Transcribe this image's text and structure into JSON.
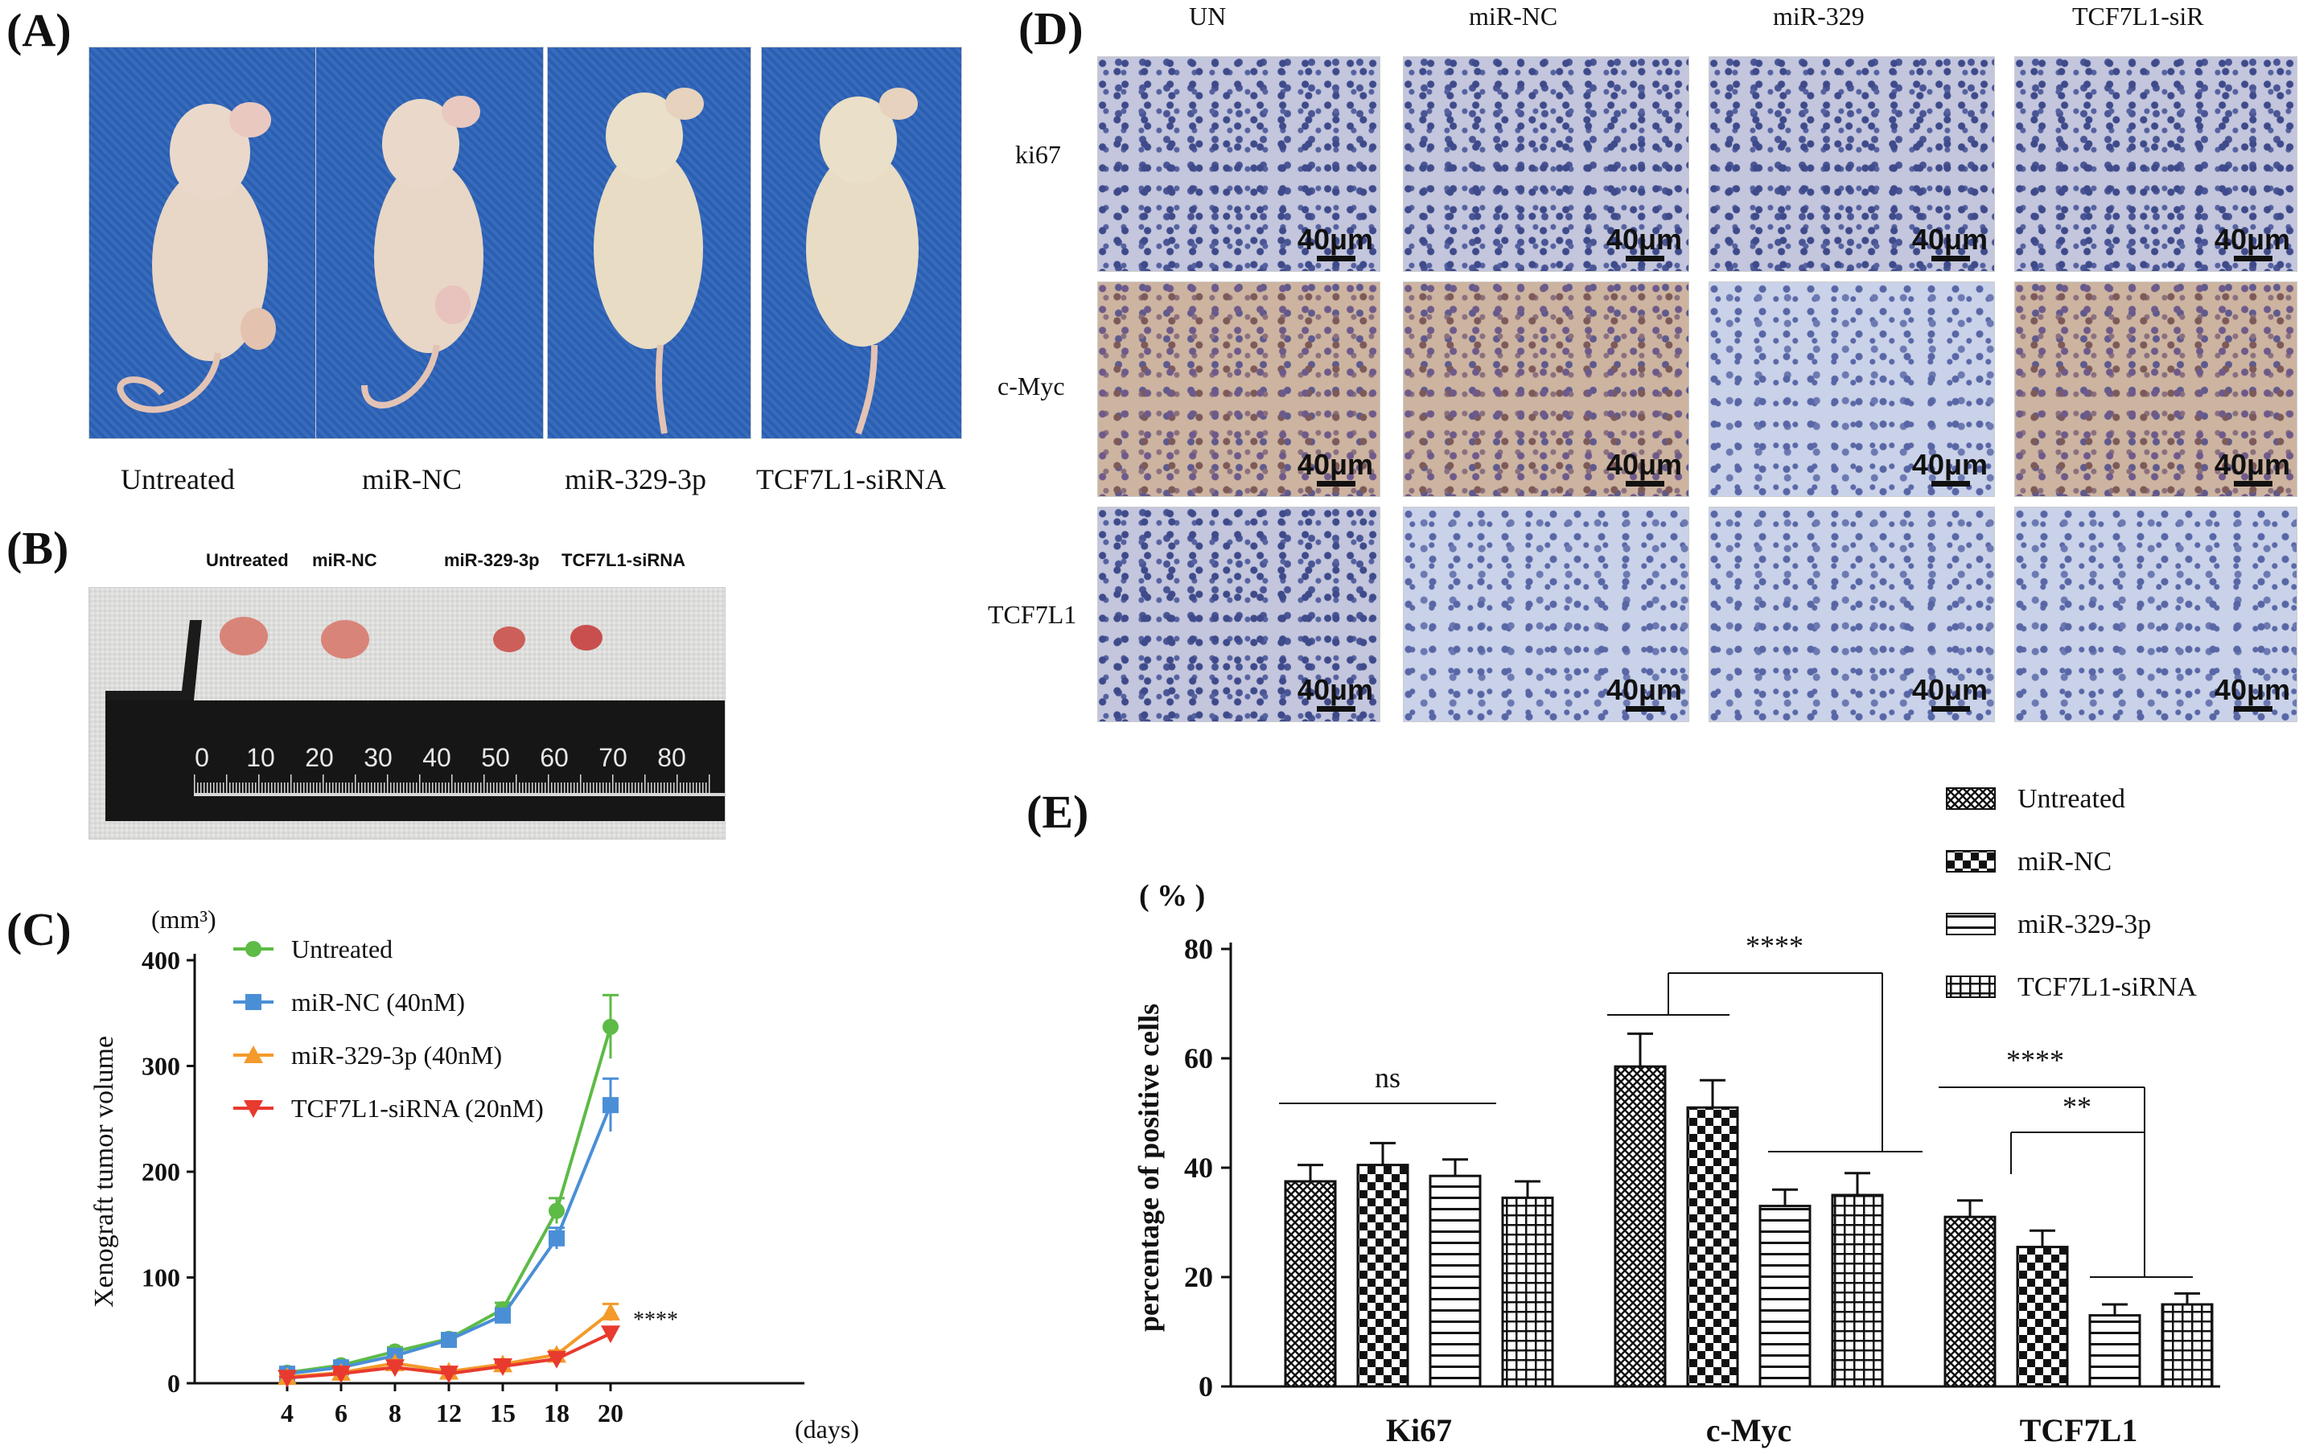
{
  "panels": {
    "A": {
      "label": "(A)",
      "mice": [
        {
          "caption": "Untreated"
        },
        {
          "caption": "miR-NC"
        },
        {
          "caption": "miR-329-3p"
        },
        {
          "caption": "TCF7L1-siRNA"
        }
      ]
    },
    "B": {
      "label": "(B)",
      "tumor_labels": [
        "Untreated",
        "miR-NC",
        "miR-329-3p",
        "TCF7L1-siRNA"
      ],
      "ruler_ticks": [
        "0",
        "10",
        "20",
        "30",
        "40",
        "50",
        "60",
        "70",
        "80"
      ]
    },
    "C": {
      "label": "(C)"
    },
    "D": {
      "label": "(D)",
      "columns": [
        "UN",
        "miR-NC",
        "miR-329",
        "TCF7L1-siR"
      ],
      "rows": [
        "ki67",
        "c-Myc",
        "TCF7L1"
      ],
      "scale_bar": "40μm"
    },
    "E": {
      "label": "(E)"
    }
  },
  "chart_data": [
    {
      "type": "line",
      "y_unit": "(mm³)",
      "ylabel": "Xenograft tumor volume",
      "x_unit": "(days)",
      "x": [
        4,
        6,
        8,
        12,
        15,
        18,
        20
      ],
      "ylim": [
        0,
        400
      ],
      "yticks": [
        0,
        100,
        200,
        300,
        400
      ],
      "series": [
        {
          "name": "Untreated",
          "color": "#5dbb46",
          "marker": "circle",
          "values": [
            10,
            17,
            30,
            42,
            70,
            163,
            337
          ],
          "errors": [
            2,
            3,
            4,
            4,
            6,
            12,
            30
          ]
        },
        {
          "name": "miR-NC (40nM)",
          "color": "#4a8fd6",
          "marker": "square",
          "values": [
            9,
            15,
            26,
            41,
            64,
            137,
            263
          ],
          "errors": [
            2,
            3,
            4,
            4,
            6,
            10,
            25
          ]
        },
        {
          "name": "miR-329-3p (40nM)",
          "color": "#f39a2a",
          "marker": "triangle-up",
          "values": [
            6,
            10,
            19,
            11,
            18,
            27,
            67
          ],
          "errors": [
            1,
            2,
            3,
            2,
            3,
            4,
            8
          ]
        },
        {
          "name": "TCF7L1-siRNA (20nM)",
          "color": "#e83a2e",
          "marker": "triangle-down",
          "values": [
            5,
            9,
            15,
            9,
            16,
            23,
            47
          ],
          "errors": [
            1,
            2,
            3,
            2,
            3,
            4,
            6
          ]
        }
      ],
      "annotation": "****"
    },
    {
      "type": "bar",
      "y_unit": "( % )",
      "ylabel": "percentage of positive cells",
      "categories": [
        "Ki67",
        "c-Myc",
        "TCF7L1"
      ],
      "ylim": [
        0,
        80
      ],
      "yticks": [
        0,
        20,
        40,
        60,
        80
      ],
      "series": [
        {
          "name": "Untreated",
          "pattern": "crosshatch",
          "values": [
            37.5,
            58.5,
            31
          ],
          "errors": [
            3,
            6,
            3
          ]
        },
        {
          "name": "miR-NC",
          "pattern": "checker",
          "values": [
            40.5,
            51,
            25.5
          ],
          "errors": [
            4,
            5,
            3
          ]
        },
        {
          "name": "miR-329-3p",
          "pattern": "horizontal",
          "values": [
            38.5,
            33,
            13
          ],
          "errors": [
            3,
            3,
            2
          ]
        },
        {
          "name": "TCF7L1-siRNA",
          "pattern": "grid",
          "values": [
            34.5,
            35,
            15
          ],
          "errors": [
            3,
            4,
            2
          ]
        }
      ],
      "significance": [
        "ns",
        "****",
        "****",
        "**"
      ]
    }
  ]
}
